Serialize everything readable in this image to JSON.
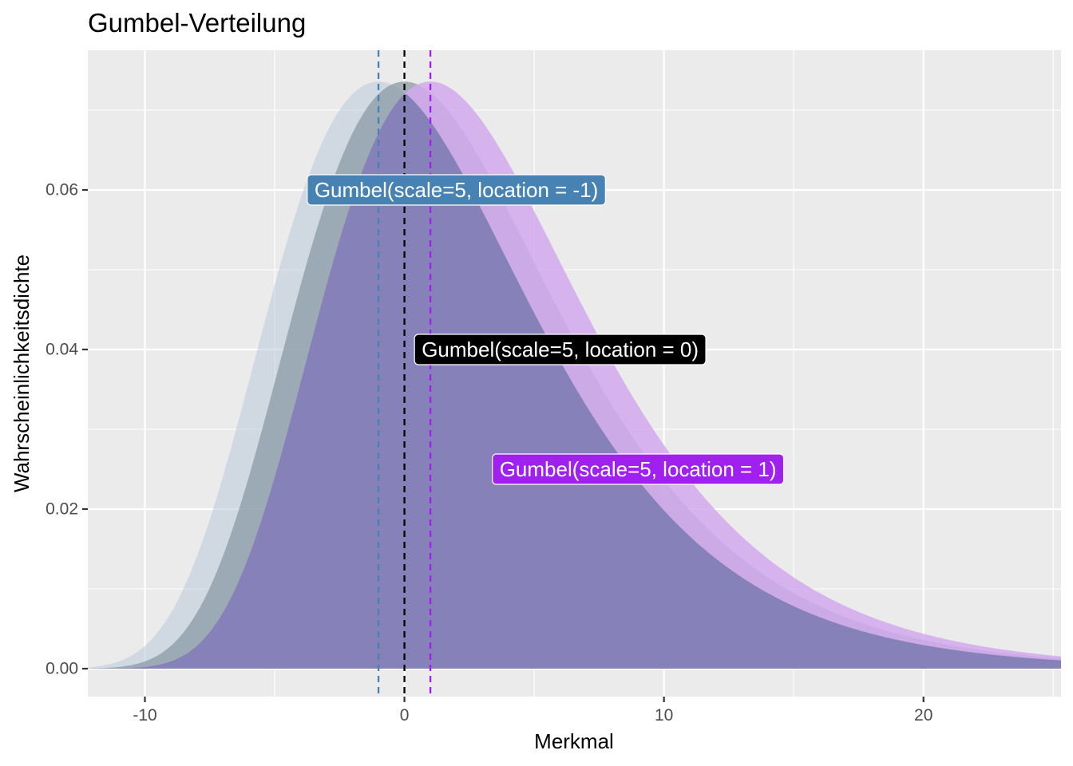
{
  "chart_data": {
    "type": "area",
    "title": "Gumbel-Verteilung",
    "xlabel": "Merkmal",
    "ylabel": "Wahrscheinlichkeitsdichte",
    "xlim": [
      -12.2,
      25.3
    ],
    "ylim": [
      -0.0035,
      0.0775
    ],
    "x_ticks": [
      -10,
      0,
      10,
      20
    ],
    "x_tick_labels": [
      "-10",
      "0",
      "10",
      "20"
    ],
    "y_ticks": [
      0.0,
      0.02,
      0.04,
      0.06
    ],
    "y_tick_labels": [
      "0.00",
      "0.02",
      "0.04",
      "0.06"
    ],
    "grid": true,
    "legend": "none",
    "series": [
      {
        "label": "Gumbel(scale=5, location = -1)",
        "scale": 5,
        "location": -1,
        "color": "#4682b4",
        "fill": "#b9cbdb",
        "label_x": 2.0,
        "label_y": 0.06,
        "x": [
          -12,
          -11,
          -10,
          -9,
          -8,
          -7,
          -6,
          -5,
          -4,
          -3,
          -2,
          -1,
          0,
          1,
          2,
          3,
          4,
          5,
          6,
          7,
          8,
          9,
          10,
          11,
          12,
          13,
          14,
          15,
          16,
          17,
          18,
          19,
          20,
          21,
          22,
          23,
          24,
          25
        ],
        "values": [
          0.00016,
          0.00064,
          0.00218,
          0.00607,
          0.01376,
          0.02562,
          0.04002,
          0.05376,
          0.06399,
          0.07002,
          0.07268,
          0.07358,
          0.0728,
          0.07065,
          0.06736,
          0.06318,
          0.05842,
          0.05333,
          0.04817,
          0.04311,
          0.0383,
          0.03382,
          0.02971,
          0.02601,
          0.0227,
          0.01976,
          0.01717,
          0.0149,
          0.01292,
          0.01119,
          0.00968,
          0.00837,
          0.00723,
          0.00624,
          0.00539,
          0.00465,
          0.00401,
          0.00346
        ]
      },
      {
        "label": "Gumbel(scale=5, location = 0)",
        "scale": 5,
        "location": 0,
        "color": "#000000",
        "fill": "#8595a1",
        "label_x": 6.0,
        "label_y": 0.04,
        "x": [
          -12,
          -11,
          -10,
          -9,
          -8,
          -7,
          -6,
          -5,
          -4,
          -3,
          -2,
          -1,
          0,
          1,
          2,
          3,
          4,
          5,
          6,
          7,
          8,
          9,
          10,
          11,
          12,
          13,
          14,
          15,
          16,
          17,
          18,
          19,
          20,
          21,
          22,
          23,
          24,
          25
        ],
        "values": [
          3e-05,
          0.00016,
          0.00064,
          0.00218,
          0.00607,
          0.01376,
          0.02562,
          0.04002,
          0.05376,
          0.06399,
          0.07002,
          0.07268,
          0.07358,
          0.0728,
          0.07065,
          0.06736,
          0.06318,
          0.05842,
          0.05333,
          0.04817,
          0.04311,
          0.0383,
          0.03382,
          0.02971,
          0.02601,
          0.0227,
          0.01976,
          0.01717,
          0.0149,
          0.01292,
          0.01119,
          0.00968,
          0.00837,
          0.00723,
          0.00624,
          0.00539,
          0.00465,
          0.00401
        ]
      },
      {
        "label": "Gumbel(scale=5, location = 1)",
        "scale": 5,
        "location": 1,
        "color": "#a020f0",
        "fill": "#d4a9ee",
        "label_x": 9.0,
        "label_y": 0.025,
        "x": [
          -12,
          -11,
          -10,
          -9,
          -8,
          -7,
          -6,
          -5,
          -4,
          -3,
          -2,
          -1,
          0,
          1,
          2,
          3,
          4,
          5,
          6,
          7,
          8,
          9,
          10,
          11,
          12,
          13,
          14,
          15,
          16,
          17,
          18,
          19,
          20,
          21,
          22,
          23,
          24,
          25
        ],
        "values": [
          0.0,
          3e-05,
          0.00016,
          0.00064,
          0.00218,
          0.00607,
          0.01376,
          0.02562,
          0.04002,
          0.05376,
          0.06399,
          0.07002,
          0.07268,
          0.07358,
          0.0728,
          0.07065,
          0.06736,
          0.06318,
          0.05842,
          0.05333,
          0.04817,
          0.04311,
          0.0383,
          0.03382,
          0.02971,
          0.02601,
          0.0227,
          0.01976,
          0.01717,
          0.0149,
          0.01292,
          0.01119,
          0.00968,
          0.00837,
          0.00723,
          0.00624,
          0.00539,
          0.00465
        ]
      }
    ],
    "overlap_fill": "#8781b9",
    "panel_background": "#ebebeb",
    "grid_color": "#ffffff"
  }
}
